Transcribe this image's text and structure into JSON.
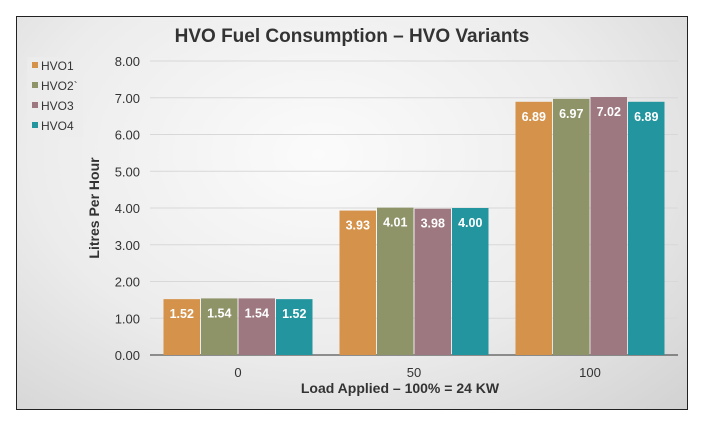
{
  "chart_data": {
    "type": "bar",
    "title": "HVO Fuel Consumption – HVO Variants",
    "xlabel": "Load Applied – 100% = 24 KW",
    "ylabel": "Litres Per Hour",
    "categories": [
      "0",
      "50",
      "100"
    ],
    "ylim": [
      0,
      8
    ],
    "yticks": [
      "0.00",
      "1.00",
      "2.00",
      "3.00",
      "4.00",
      "5.00",
      "6.00",
      "7.00",
      "8.00"
    ],
    "grid": true,
    "legend_position": "top-left",
    "series": [
      {
        "name": "HVO1",
        "color": "#d4924a",
        "values": [
          1.52,
          3.93,
          6.89
        ],
        "labels": [
          "1.52",
          "3.93",
          "6.89"
        ]
      },
      {
        "name": "HVO2`",
        "color": "#8e9468",
        "values": [
          1.54,
          4.01,
          6.97
        ],
        "labels": [
          "1.54",
          "4.01",
          "6.97"
        ]
      },
      {
        "name": "HVO3",
        "color": "#9e7880",
        "values": [
          1.54,
          3.98,
          7.02
        ],
        "labels": [
          "1.54",
          "3.98",
          "7.02"
        ]
      },
      {
        "name": "HVO4",
        "color": "#22959e",
        "values": [
          1.52,
          4.0,
          6.89
        ],
        "labels": [
          "1.52",
          "4.00",
          "6.89"
        ]
      }
    ]
  }
}
